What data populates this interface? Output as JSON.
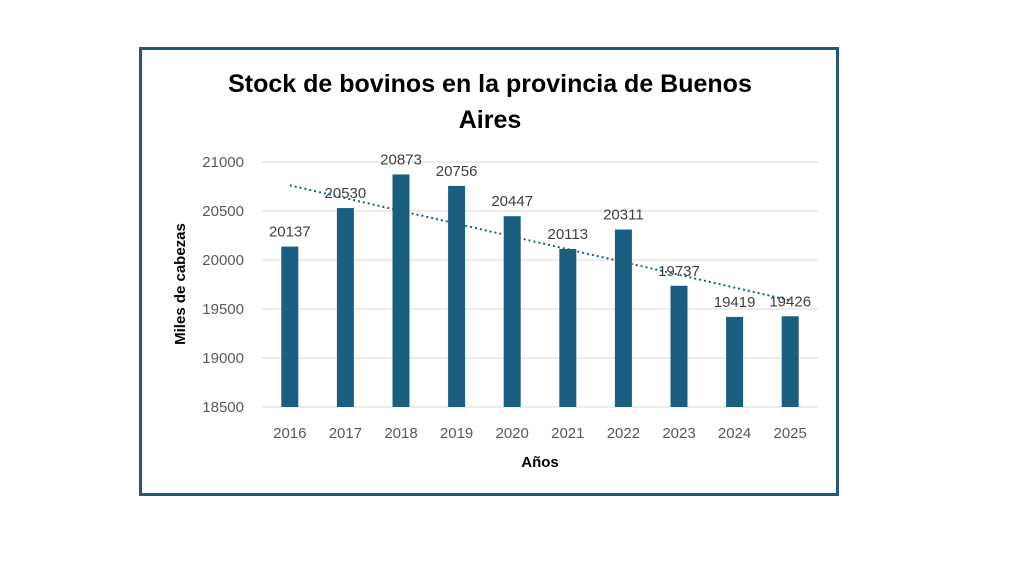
{
  "chart_data": {
    "type": "bar",
    "title_lines": [
      "Stock de bovinos en la provincia de Buenos",
      "Aires"
    ],
    "xlabel": "Años",
    "ylabel": "Miles de cabezas",
    "categories": [
      "2016",
      "2017",
      "2018",
      "2019",
      "2020",
      "2021",
      "2022",
      "2023",
      "2024",
      "2025"
    ],
    "values": [
      20137,
      20530,
      20873,
      20756,
      20447,
      20113,
      20311,
      19737,
      19419,
      19426
    ],
    "ylim": [
      18500,
      21000
    ],
    "yticks": [
      18500,
      19000,
      19500,
      20000,
      20500,
      21000
    ],
    "grid": true,
    "trendline": "linear",
    "bar_color": "#1a5f80",
    "grid_color": "#d9d9d9",
    "trend_color": "#1a5f80",
    "legend": "none"
  }
}
